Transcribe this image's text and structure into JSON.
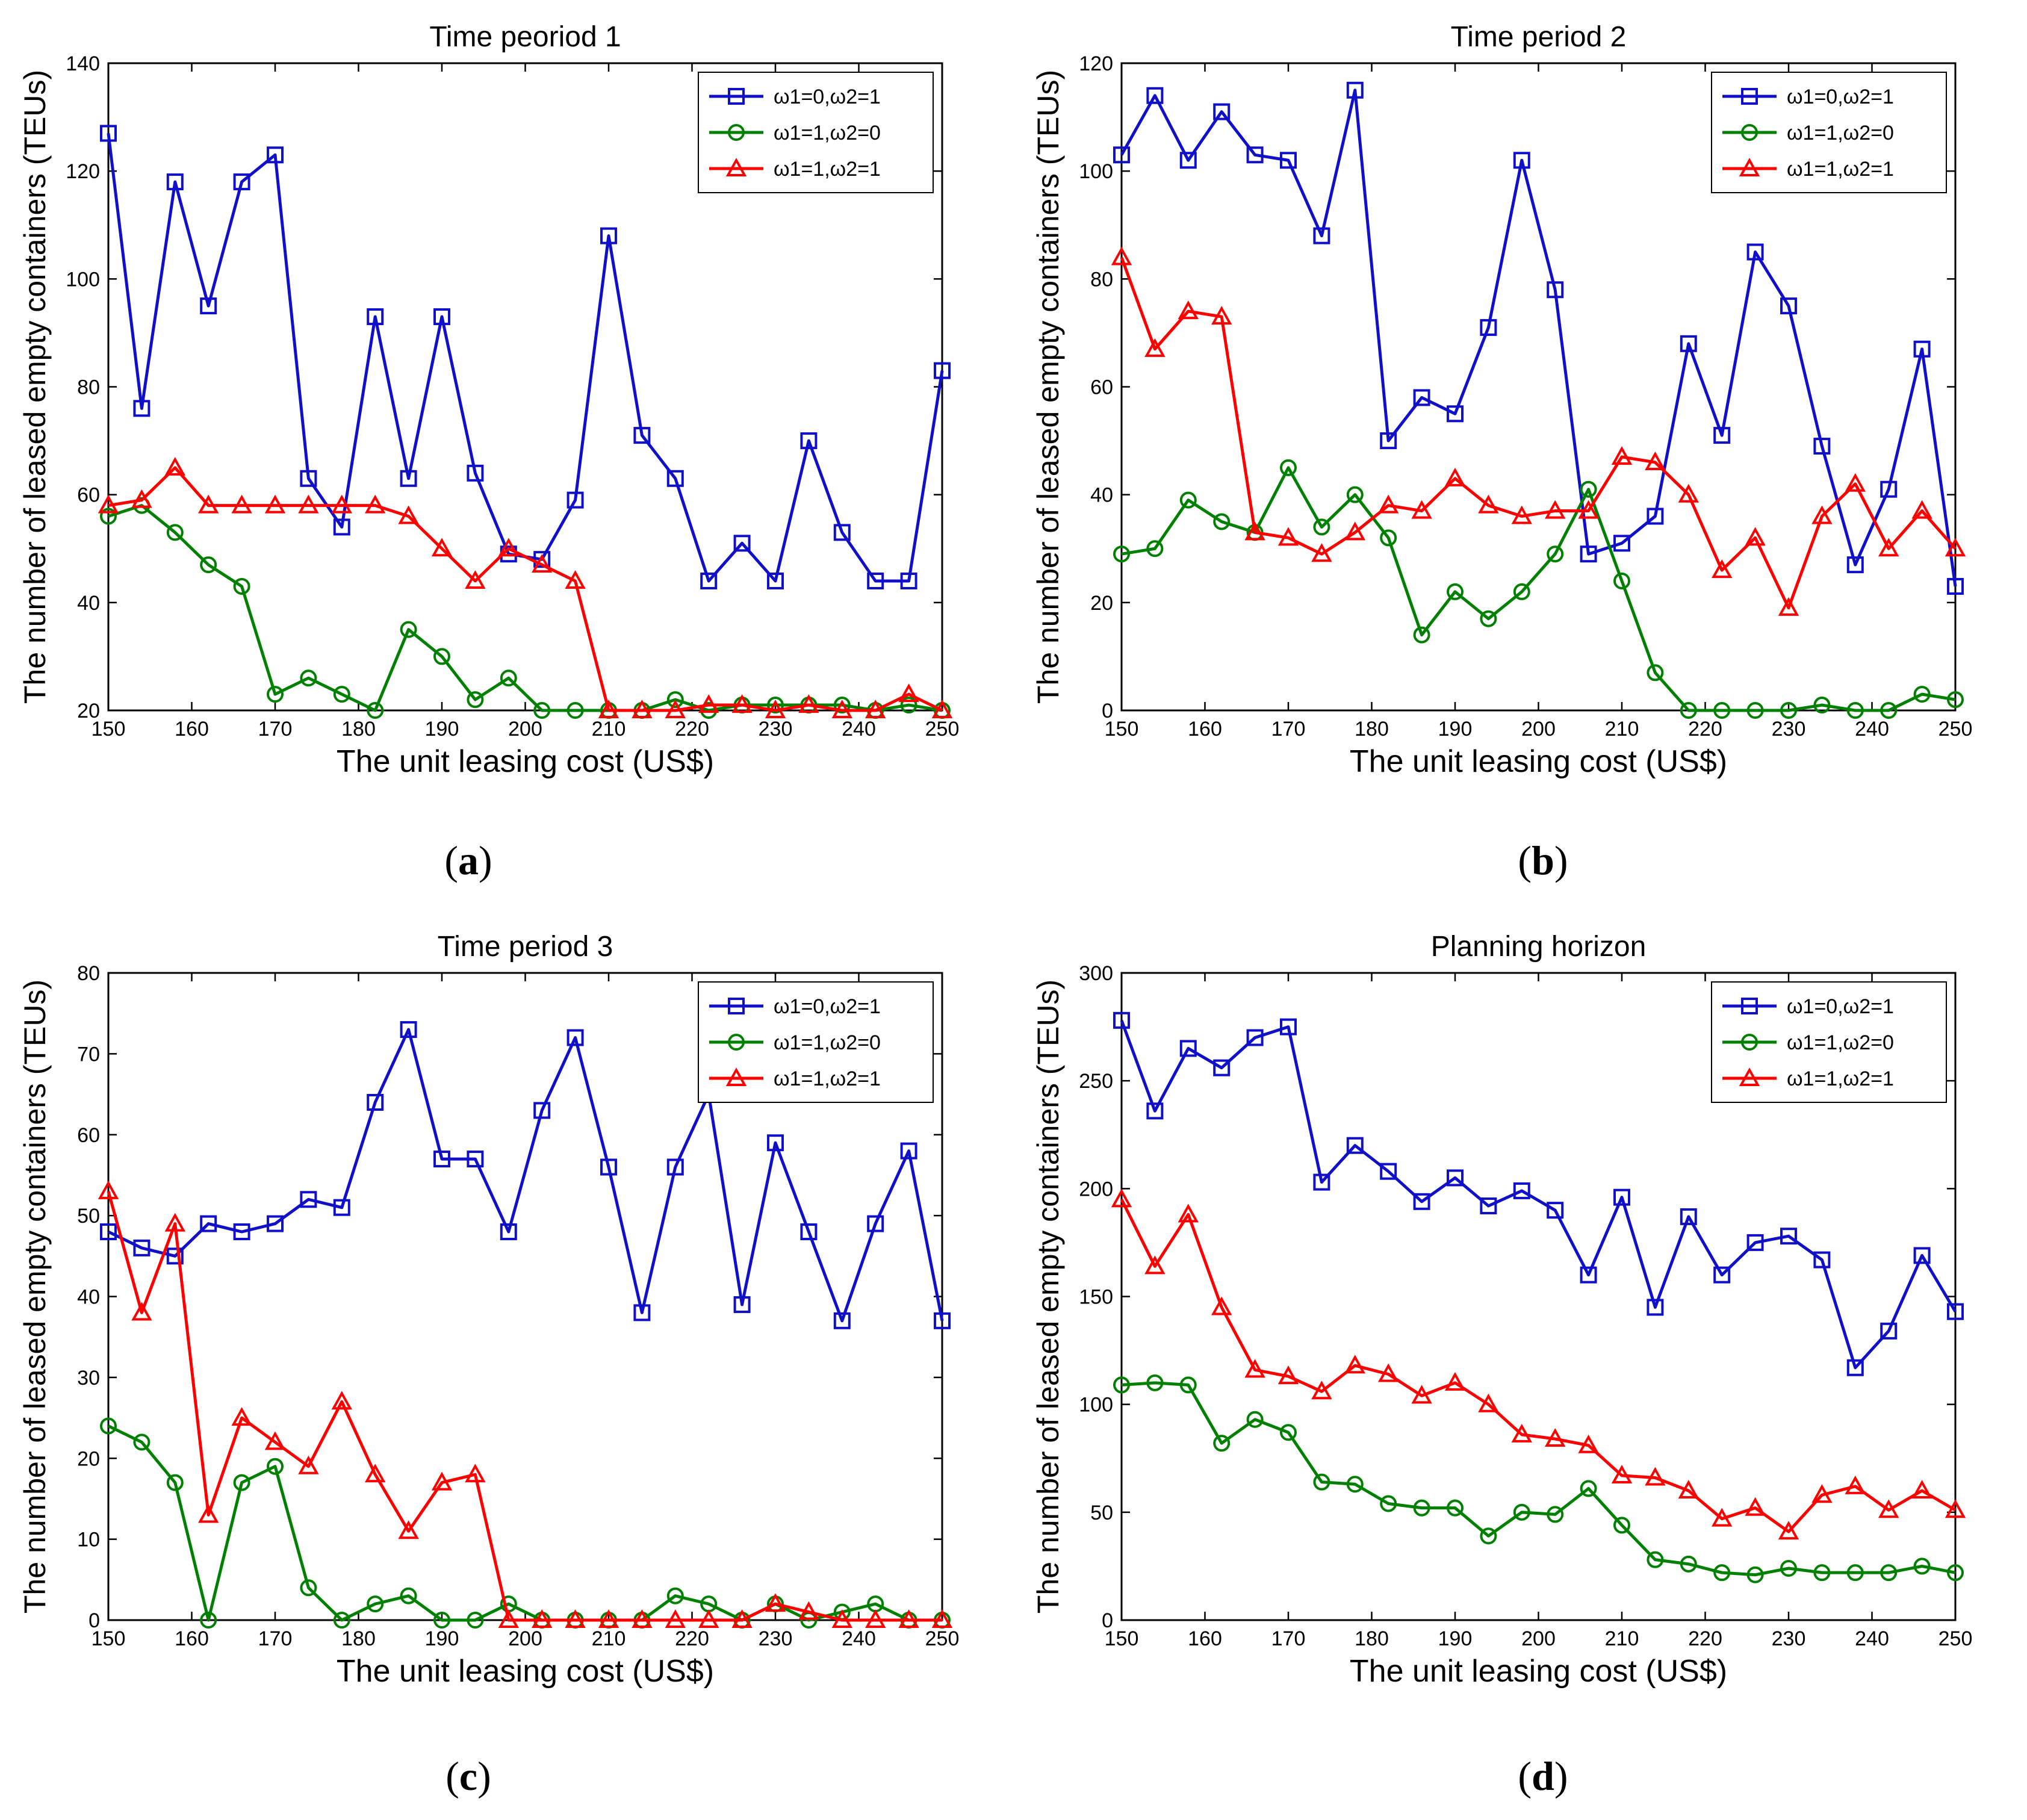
{
  "colors": {
    "blue": "#1010c8",
    "green": "#008000",
    "red": "#ff0000",
    "axis": "#000000"
  },
  "legend": [
    "ω1=0,ω2=1",
    "ω1=1,ω2=0",
    "ω1=1,ω2=1"
  ],
  "panel_labels": [
    "a",
    "b",
    "c",
    "d"
  ],
  "chart_data": [
    {
      "type": "line",
      "title": "Time peoriod 1",
      "xlabel": "The unit leasing cost (US$)",
      "ylabel": "The number of leased empty containers (TEUs)",
      "xlim": [
        150,
        250
      ],
      "ylim": [
        20,
        140
      ],
      "xticks": [
        150,
        160,
        170,
        180,
        190,
        200,
        210,
        220,
        230,
        240,
        250
      ],
      "yticks": [
        20,
        40,
        60,
        80,
        100,
        120,
        140
      ],
      "x": [
        150,
        154,
        158,
        162,
        166,
        170,
        174,
        178,
        182,
        186,
        190,
        194,
        198,
        202,
        206,
        210,
        214,
        218,
        222,
        226,
        230,
        234,
        238,
        242,
        246,
        250
      ],
      "series": [
        {
          "name": "ω1=0,ω2=1",
          "marker": "square",
          "values": [
            127,
            76,
            118,
            95,
            118,
            123,
            63,
            54,
            93,
            63,
            93,
            64,
            49,
            48,
            59,
            108,
            71,
            63,
            44,
            51,
            44,
            70,
            53,
            44,
            44,
            83
          ]
        },
        {
          "name": "ω1=1,ω2=0",
          "marker": "circle",
          "values": [
            56,
            58,
            53,
            47,
            43,
            23,
            26,
            23,
            20,
            35,
            30,
            22,
            26,
            20,
            20,
            20,
            20,
            22,
            20,
            21,
            21,
            21,
            21,
            20,
            21,
            20
          ]
        },
        {
          "name": "ω1=1,ω2=1",
          "marker": "triangle",
          "values": [
            58,
            59,
            65,
            58,
            58,
            58,
            58,
            58,
            58,
            56,
            50,
            44,
            50,
            47,
            44,
            20,
            20,
            20,
            21,
            21,
            20,
            21,
            20,
            20,
            23,
            20
          ]
        }
      ]
    },
    {
      "type": "line",
      "title": "Time period 2",
      "xlabel": "The unit leasing cost (US$)",
      "ylabel": "The number of leased empty containers (TEUs)",
      "xlim": [
        150,
        250
      ],
      "ylim": [
        0,
        120
      ],
      "xticks": [
        150,
        160,
        170,
        180,
        190,
        200,
        210,
        220,
        230,
        240,
        250
      ],
      "yticks": [
        0,
        20,
        40,
        60,
        80,
        100,
        120
      ],
      "x": [
        150,
        154,
        158,
        162,
        166,
        170,
        174,
        178,
        182,
        186,
        190,
        194,
        198,
        202,
        206,
        210,
        214,
        218,
        222,
        226,
        230,
        234,
        238,
        242,
        246,
        250
      ],
      "series": [
        {
          "name": "ω1=0,ω2=1",
          "marker": "square",
          "values": [
            103,
            114,
            102,
            111,
            103,
            102,
            88,
            115,
            50,
            58,
            55,
            71,
            102,
            78,
            29,
            31,
            36,
            68,
            51,
            85,
            75,
            49,
            27,
            41,
            67,
            23
          ]
        },
        {
          "name": "ω1=1,ω2=0",
          "marker": "circle",
          "values": [
            29,
            30,
            39,
            35,
            33,
            45,
            34,
            40,
            32,
            14,
            22,
            17,
            22,
            29,
            41,
            24,
            7,
            0,
            0,
            0,
            0,
            1,
            0,
            0,
            3,
            2
          ]
        },
        {
          "name": "ω1=1,ω2=1",
          "marker": "triangle",
          "values": [
            84,
            67,
            74,
            73,
            33,
            32,
            29,
            33,
            38,
            37,
            43,
            38,
            36,
            37,
            37,
            47,
            46,
            40,
            26,
            32,
            19,
            36,
            42,
            30,
            37,
            30
          ]
        }
      ]
    },
    {
      "type": "line",
      "title": "Time period 3",
      "xlabel": "The unit leasing cost (US$)",
      "ylabel": "The number of leased empty containers (TEUs)",
      "xlim": [
        150,
        250
      ],
      "ylim": [
        0,
        80
      ],
      "xticks": [
        150,
        160,
        170,
        180,
        190,
        200,
        210,
        220,
        230,
        240,
        250
      ],
      "yticks": [
        0,
        10,
        20,
        30,
        40,
        50,
        60,
        70,
        80
      ],
      "x": [
        150,
        154,
        158,
        162,
        166,
        170,
        174,
        178,
        182,
        186,
        190,
        194,
        198,
        202,
        206,
        210,
        214,
        218,
        222,
        226,
        230,
        234,
        238,
        242,
        246,
        250
      ],
      "series": [
        {
          "name": "ω1=0,ω2=1",
          "marker": "square",
          "values": [
            48,
            46,
            45,
            49,
            48,
            49,
            52,
            51,
            64,
            73,
            57,
            57,
            48,
            63,
            72,
            56,
            38,
            56,
            65,
            39,
            59,
            48,
            37,
            49,
            58,
            37
          ]
        },
        {
          "name": "ω1=1,ω2=0",
          "marker": "circle",
          "values": [
            24,
            22,
            17,
            0,
            17,
            19,
            4,
            0,
            2,
            3,
            0,
            0,
            2,
            0,
            0,
            0,
            0,
            3,
            2,
            0,
            2,
            0,
            1,
            2,
            0,
            0
          ]
        },
        {
          "name": "ω1=1,ω2=1",
          "marker": "triangle",
          "values": [
            53,
            38,
            49,
            13,
            25,
            22,
            19,
            27,
            18,
            11,
            17,
            18,
            0,
            0,
            0,
            0,
            0,
            0,
            0,
            0,
            2,
            1,
            0,
            0,
            0,
            0
          ]
        }
      ]
    },
    {
      "type": "line",
      "title": "Planning horizon",
      "xlabel": "The unit leasing cost (US$)",
      "ylabel": "The number of leased empty containers (TEUs)",
      "xlim": [
        150,
        250
      ],
      "ylim": [
        0,
        300
      ],
      "xticks": [
        150,
        160,
        170,
        180,
        190,
        200,
        210,
        220,
        230,
        240,
        250
      ],
      "yticks": [
        0,
        50,
        100,
        150,
        200,
        250,
        300
      ],
      "x": [
        150,
        154,
        158,
        162,
        166,
        170,
        174,
        178,
        182,
        186,
        190,
        194,
        198,
        202,
        206,
        210,
        214,
        218,
        222,
        226,
        230,
        234,
        238,
        242,
        246,
        250
      ],
      "series": [
        {
          "name": "ω1=0,ω2=1",
          "marker": "square",
          "values": [
            278,
            236,
            265,
            256,
            270,
            275,
            203,
            220,
            208,
            194,
            205,
            192,
            199,
            190,
            160,
            196,
            145,
            187,
            160,
            175,
            178,
            167,
            117,
            134,
            169,
            143
          ]
        },
        {
          "name": "ω1=1,ω2=0",
          "marker": "circle",
          "values": [
            109,
            110,
            109,
            82,
            93,
            87,
            64,
            63,
            54,
            52,
            52,
            39,
            50,
            49,
            61,
            44,
            28,
            26,
            22,
            21,
            24,
            22,
            22,
            22,
            25,
            22
          ]
        },
        {
          "name": "ω1=1,ω2=1",
          "marker": "triangle",
          "values": [
            195,
            164,
            188,
            145,
            116,
            113,
            106,
            118,
            114,
            104,
            110,
            100,
            86,
            84,
            81,
            67,
            66,
            60,
            47,
            52,
            41,
            58,
            62,
            51,
            60,
            51
          ]
        }
      ]
    }
  ]
}
